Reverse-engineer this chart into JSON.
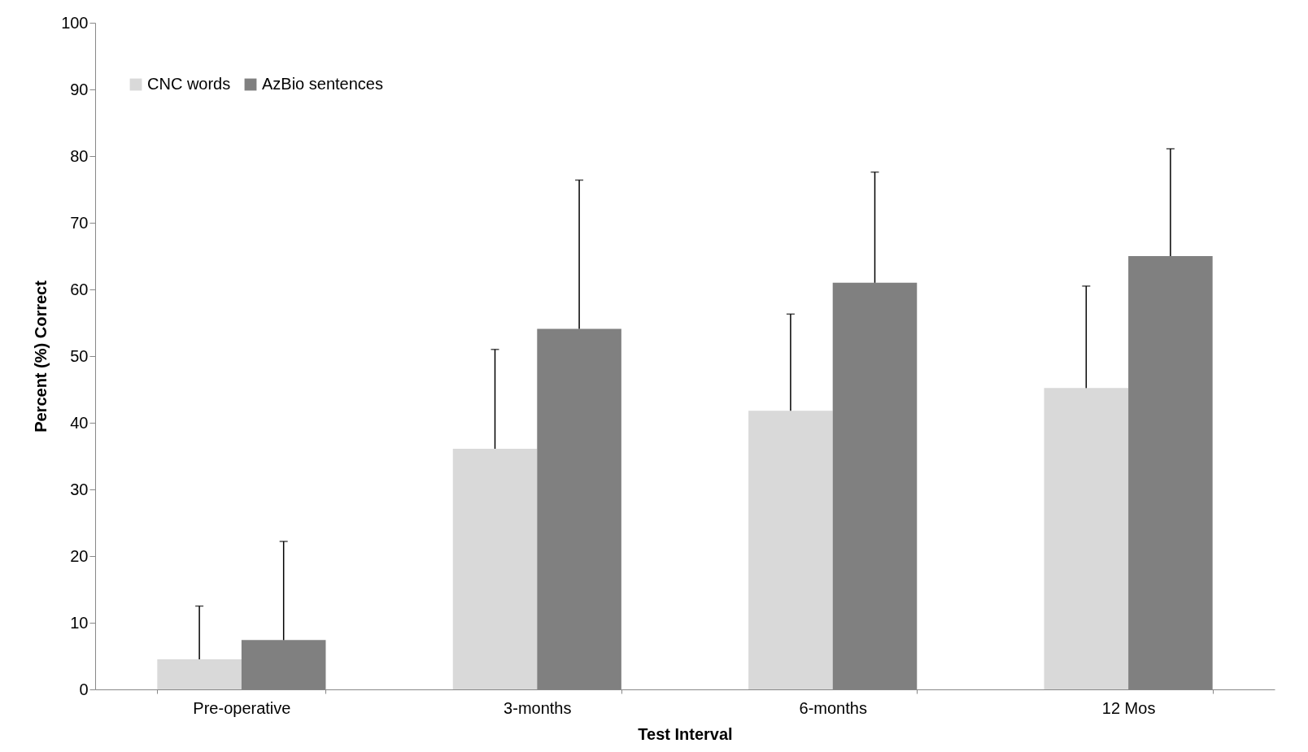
{
  "chart_data": {
    "type": "bar",
    "xlabel": "Test Interval",
    "ylabel": "Percent (%) Correct",
    "categories": [
      "Pre-operative",
      "3-months",
      "6-months",
      "12 Mos"
    ],
    "series": [
      {
        "name": "CNC words",
        "color": "#d9d9d9",
        "values": [
          4.5,
          36.1,
          41.8,
          45.2
        ],
        "errors": [
          [
            4.5,
            12.5
          ],
          [
            36.1,
            51
          ],
          [
            41.8,
            56.3
          ],
          [
            45.2,
            60.5
          ]
        ]
      },
      {
        "name": "AzBio sentences",
        "color": "#808080",
        "values": [
          7.4,
          54.1,
          61,
          65
        ],
        "errors": [
          [
            7.4,
            22.2
          ],
          [
            54.1,
            76.4
          ],
          [
            61,
            77.6
          ],
          [
            65,
            81.1
          ]
        ]
      }
    ],
    "ylim": [
      0,
      100
    ],
    "yticks": [
      0,
      10,
      20,
      30,
      40,
      50,
      60,
      70,
      80,
      90,
      100
    ],
    "grid": false,
    "legend": "top left"
  }
}
